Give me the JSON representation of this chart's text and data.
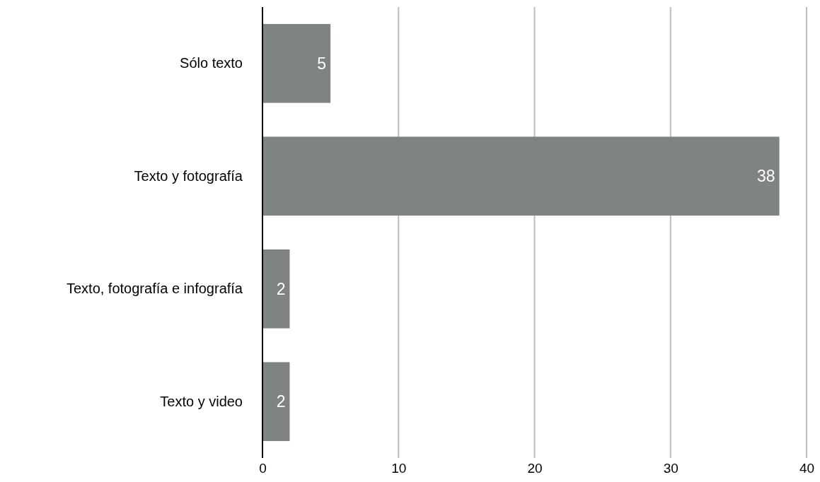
{
  "chart_data": {
    "type": "bar",
    "orientation": "horizontal",
    "categories": [
      "Sólo texto",
      "Texto y fotografía",
      "Texto, fotografía e infografía",
      "Texto y video"
    ],
    "values": [
      5,
      38,
      2,
      2
    ],
    "color": "#7f8481",
    "xlim": [
      0,
      40
    ],
    "xticks": [
      0,
      10,
      20,
      30,
      40
    ],
    "grid": "x",
    "data_labels": true
  }
}
